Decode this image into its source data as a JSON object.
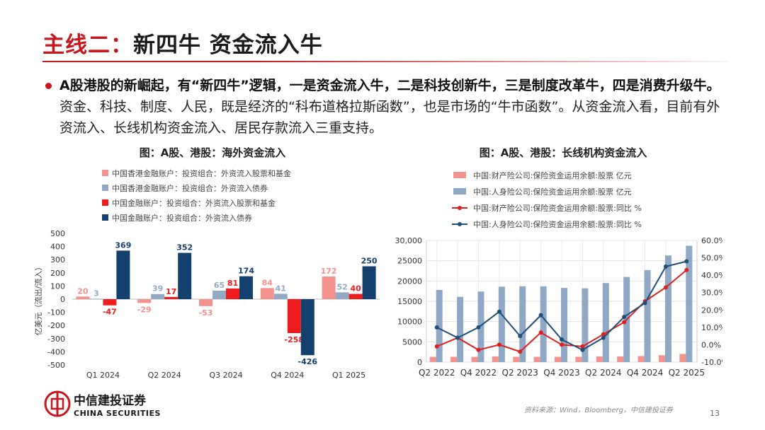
{
  "slide": {
    "title_accent": "主线二：",
    "title_rest": "新四牛 资金流入牛",
    "bullet_bold": "A股港股的新崛起，有“新四牛”逻辑，一是资金流入牛，二是科技创新牛，三是制度改革牛，四是消费升级牛。",
    "bullet_normal": "资金、科技、制度、人民，既是经济的“科布道格拉斯函数”，也是市场的“牛市函数”。从资金流入看，目前有外资流入、长线机构资金流入、居民存款流入三重支持。",
    "source": "资料来源：Wind，Bloomberg，中信建投证券",
    "page_number": "13",
    "logo_cn": "中信建投证券",
    "logo_en": "CHINA SECURITIES"
  },
  "chart_data": [
    {
      "type": "bar",
      "title": "图：A股、港股：海外资金流入",
      "ylabel": "亿美元（流出/流入）",
      "ylim": [
        -500,
        500
      ],
      "yticks": [
        -500,
        -400,
        -300,
        -200,
        -100,
        0,
        100,
        200,
        300,
        400,
        500
      ],
      "categories": [
        "Q1 2024",
        "Q2 2024",
        "Q3 2024",
        "Q4 2024",
        "Q1 2025"
      ],
      "legend_position": "top",
      "series": [
        {
          "name": "中国香港金融账户：投资组合：外资流入股票和基金",
          "color": "#f4928e",
          "values": [
            20,
            -29,
            -53,
            84,
            172
          ]
        },
        {
          "name": "中国香港金融账户：投资组合：外资流入债券",
          "color": "#92a9c5",
          "values": [
            3,
            39,
            65,
            41,
            52
          ]
        },
        {
          "name": "中国金融账户：投资组合：外资流入股票和基金",
          "color": "#ee1c1c",
          "values": [
            -47,
            17,
            81,
            -258,
            40
          ]
        },
        {
          "name": "中国金融账户：投资组合：外资流入债券",
          "color": "#14406e",
          "values": [
            369,
            352,
            174,
            -426,
            250
          ]
        }
      ],
      "data_labels": [
        "20",
        "3",
        "-47",
        "369",
        "-29",
        "39",
        "17",
        "352",
        "-53",
        "65",
        "81",
        "174",
        "84",
        "41",
        "-258",
        "-426",
        "172",
        "52",
        "40",
        "250"
      ]
    },
    {
      "type": "bar",
      "title": "图：A股、港股：长线机构资金流入",
      "legend_position": "top",
      "grid": true,
      "x": [
        "Q2 2022",
        "Q3 2022",
        "Q4 2022",
        "Q1 2023",
        "Q2 2023",
        "Q3 2023",
        "Q4 2023",
        "Q1 2024",
        "Q2 2024",
        "Q3 2024",
        "Q4 2024",
        "Q1 2025",
        "Q2 2025"
      ],
      "x_tick_labels": [
        "Q2 2022",
        "Q4 2022",
        "Q2 2023",
        "Q4 2023",
        "Q2 2024",
        "Q4 2024",
        "Q2 2025"
      ],
      "y_left": {
        "ylim": [
          0,
          30000
        ],
        "ticks": [
          "0",
          "5000",
          "10000",
          "15000",
          "20000",
          "25000",
          "30,000"
        ]
      },
      "y_right": {
        "ylim": [
          -10,
          60
        ],
        "ticks": [
          "-10.0%",
          "0.0%",
          "10.0%",
          "20.0%",
          "30.0%",
          "40.0%",
          "50.0%",
          "60.0%"
        ]
      },
      "series": [
        {
          "name": "中国:财产险公司:保险资金运用余额:股票 亿元",
          "kind": "bar",
          "axis": "left",
          "color": "#f4928e",
          "values": [
            1300,
            1300,
            1300,
            1400,
            1300,
            1300,
            1300,
            1300,
            1400,
            1400,
            1500,
            1700,
            2000
          ]
        },
        {
          "name": "中国:人身险公司:保险资金运用余额:股票 亿元",
          "kind": "bar",
          "axis": "left",
          "color": "#8fa8c6",
          "values": [
            17800,
            16100,
            17400,
            18600,
            18700,
            18700,
            18300,
            18200,
            19500,
            21000,
            22700,
            26300,
            28700
          ]
        },
        {
          "name": "中国:财产险公司:保险资金运用余额:股票:同比 %",
          "kind": "line",
          "axis": "right",
          "color": "#e02020",
          "values": [
            -1,
            4,
            -3,
            0,
            -4,
            7,
            0,
            -1,
            6,
            13,
            25,
            33,
            43
          ]
        },
        {
          "name": "中国:人身险公司:保险资金运用余额:股票:同比 %",
          "kind": "line",
          "axis": "right",
          "color": "#1f4e79",
          "values": [
            10,
            4,
            10,
            19,
            5,
            17,
            3,
            -3,
            4,
            16,
            24,
            45,
            48
          ]
        }
      ]
    }
  ]
}
